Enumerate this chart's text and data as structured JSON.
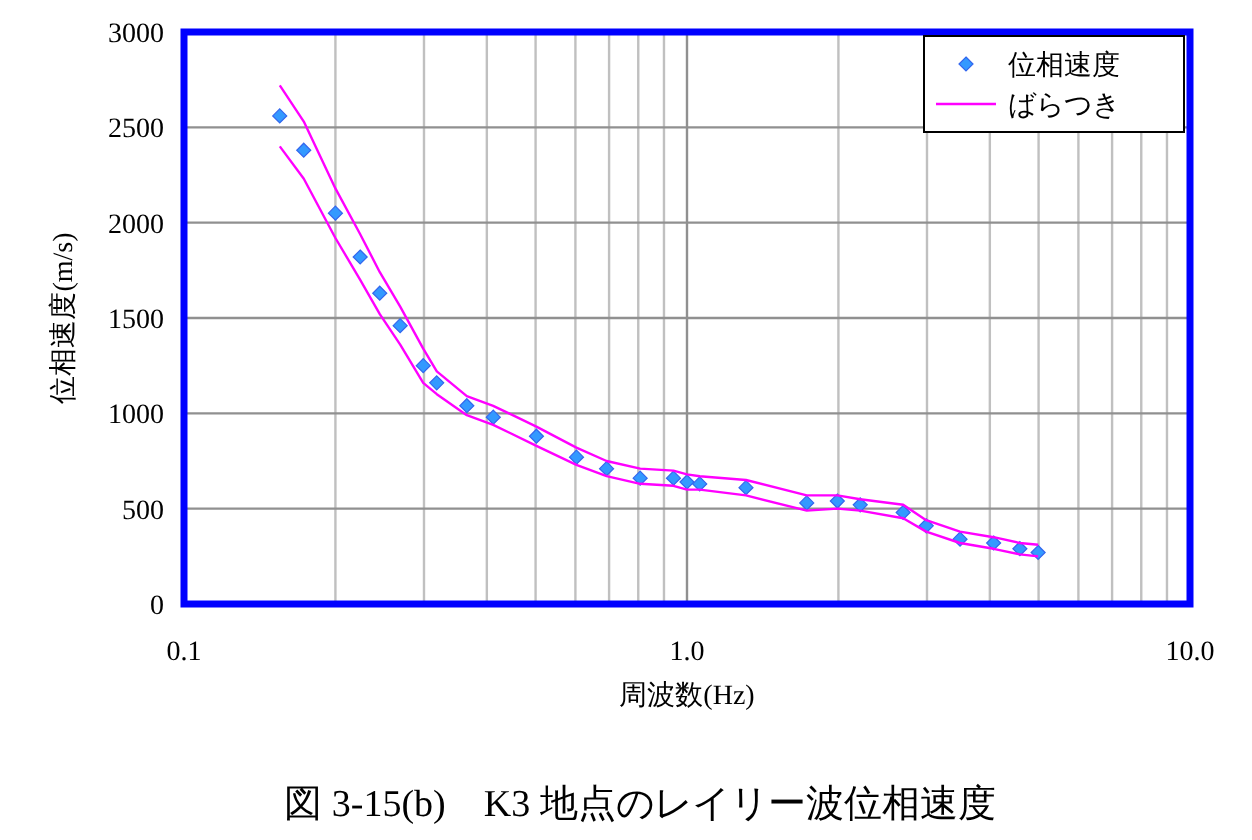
{
  "chart_data": {
    "type": "scatter",
    "title": "図 3-15(b)　K3 地点のレイリー波位相速度",
    "xlabel": "周波数(Hz)",
    "ylabel": "位相速度(m/s)",
    "log": "x",
    "xlim": [
      0.1,
      10
    ],
    "xticks": [
      {
        "value": 0.1,
        "label": "0.1"
      },
      {
        "value": 1,
        "label": "1.0"
      },
      {
        "value": 10,
        "label": "10.0"
      }
    ],
    "ylim": [
      0,
      3000
    ],
    "yticks": [
      0,
      500,
      1000,
      1500,
      2000,
      2500,
      3000
    ],
    "grid": true,
    "legend": "top right",
    "series": [
      {
        "name": "位相速度",
        "marker": "diamond",
        "color": "#3399ff",
        "x": [
          0.155,
          0.173,
          0.2,
          0.224,
          0.245,
          0.269,
          0.299,
          0.318,
          0.365,
          0.412,
          0.502,
          0.603,
          0.692,
          0.807,
          0.94,
          1.0,
          1.06,
          1.31,
          1.73,
          1.99,
          2.21,
          2.69,
          2.99,
          3.49,
          4.07,
          4.59,
          4.99
        ],
        "values": [
          2560,
          2380,
          2050,
          1820,
          1630,
          1460,
          1250,
          1160,
          1040,
          980,
          880,
          770,
          710,
          660,
          660,
          640,
          630,
          610,
          530,
          540,
          520,
          480,
          410,
          340,
          320,
          290,
          270
        ]
      },
      {
        "name": "ばらつき",
        "type": "line",
        "line_style": "solid",
        "color": "#ff00ff",
        "x": [
          0.155,
          0.173,
          0.2,
          0.224,
          0.245,
          0.269,
          0.299,
          0.318,
          0.365,
          0.412,
          0.502,
          0.603,
          0.692,
          0.807,
          0.94,
          1.0,
          1.06,
          1.31,
          1.73,
          1.99,
          2.21,
          2.69,
          2.99,
          3.49,
          4.07,
          4.59,
          4.99
        ],
        "values": [
          2720,
          2530,
          2180,
          1940,
          1740,
          1560,
          1340,
          1220,
          1090,
          1040,
          930,
          820,
          750,
          710,
          700,
          680,
          670,
          650,
          570,
          570,
          550,
          520,
          440,
          380,
          350,
          320,
          310
        ]
      },
      {
        "type": "line",
        "line_style": "solid",
        "color": "#ff00ff",
        "x": [
          0.155,
          0.173,
          0.2,
          0.224,
          0.245,
          0.269,
          0.299,
          0.318,
          0.365,
          0.412,
          0.502,
          0.603,
          0.692,
          0.807,
          0.94,
          1.0,
          1.06,
          1.31,
          1.73,
          1.99,
          2.21,
          2.69,
          2.99,
          3.49,
          4.07,
          4.59,
          4.99
        ],
        "values": [
          2400,
          2230,
          1920,
          1700,
          1520,
          1360,
          1160,
          1100,
          990,
          940,
          830,
          730,
          670,
          630,
          620,
          600,
          600,
          570,
          490,
          500,
          490,
          450,
          380,
          320,
          290,
          260,
          250
        ]
      }
    ]
  }
}
